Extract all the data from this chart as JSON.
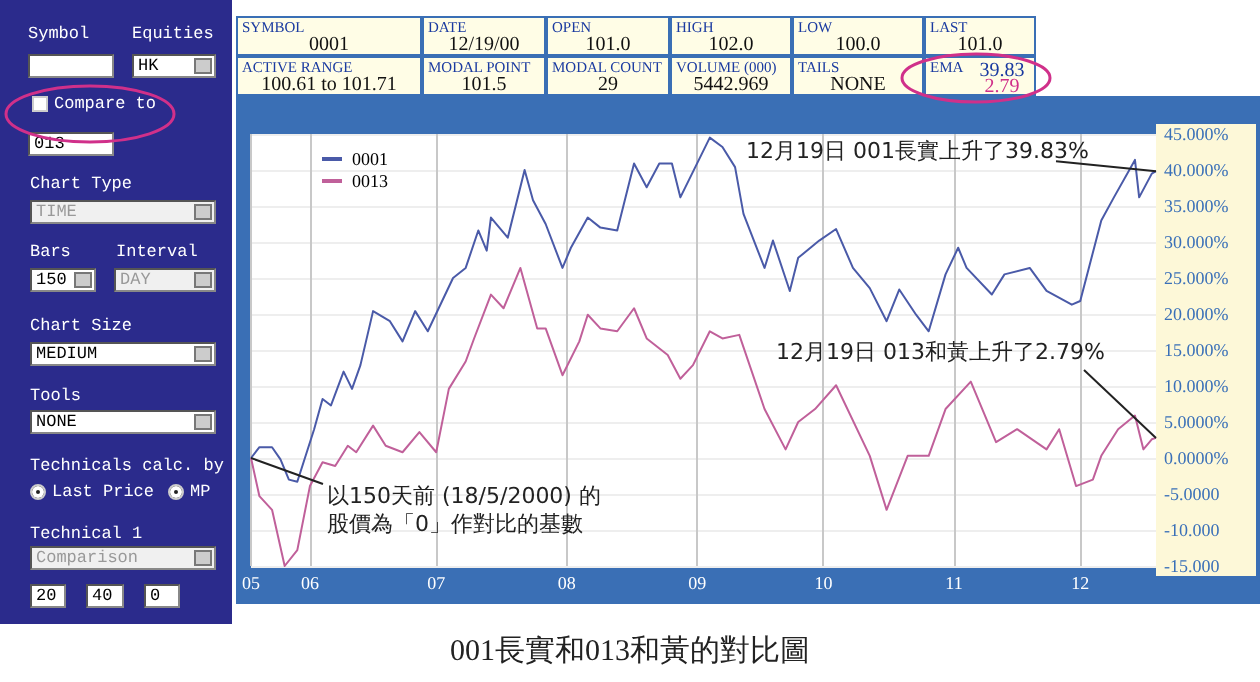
{
  "chart_data": [
    {
      "type": "other",
      "annotations": [
        "Symbol",
        "Equities",
        "HK",
        "Compare to",
        "013",
        "Chart Type",
        "TIME",
        "Bars",
        "Interval",
        "150",
        "DAY",
        "Chart Size",
        "MEDIUM",
        "Tools",
        "NONE",
        "Technicals calc. by",
        "Last Price",
        "MP",
        "Technical 1",
        "Comparison",
        "20",
        "40",
        "0"
      ]
    },
    {
      "type": "other",
      "annotations": [
        "SYMBOL",
        "0001",
        "DATE",
        "12/19/00",
        "OPEN",
        "101.0",
        "HIGH",
        "102.0",
        "LOW",
        "100.0",
        "LAST",
        "101.0",
        "ACTIVE RANGE",
        "100.61 to 101.71",
        "MODAL POINT",
        "101.5",
        "MODAL COUNT",
        "29",
        "VOLUME (000)",
        "5442.969",
        "TAILS",
        "NONE",
        "EMA",
        "39.83",
        "2.79"
      ]
    },
    {
      "type": "line",
      "title": "001長實和013和黃的對比圖",
      "marker": "none",
      "grid": true,
      "legend": "top left",
      "annotations": [
        {
          "text": "12月19日 001長實上升了39.83%",
          "x": "2000-12-19",
          "y": 39.83
        },
        {
          "text": "12月19日 013和黃上升了2.79%",
          "x": "2000-12-19",
          "y": 2.79
        },
        {
          "text": "以150天前 (18/5/2000) 的股價為「0」作對比的基數",
          "x": "2000-05-18",
          "y": 0
        }
      ],
      "xlim": [
        "2000-05-18",
        "2000-12-19"
      ],
      "xticks": [
        {
          "value": "2000-05-18",
          "label": "05"
        },
        {
          "value": "2000-06-01",
          "label": "06"
        },
        {
          "value": "2000-07-01",
          "label": "07"
        },
        {
          "value": "2000-08-01",
          "label": "08"
        },
        {
          "value": "2000-09-01",
          "label": "09"
        },
        {
          "value": "2000-10-01",
          "label": "10"
        },
        {
          "value": "2000-11-01",
          "label": "11"
        },
        {
          "value": "2000-12-01",
          "label": "12"
        }
      ],
      "ylim": [
        -15,
        45
      ],
      "yticks": [
        {
          "value": 45,
          "label": "45.000%"
        },
        {
          "value": 40,
          "label": "40.000%"
        },
        {
          "value": 35,
          "label": "35.000%"
        },
        {
          "value": 30,
          "label": "30.000%"
        },
        {
          "value": 25,
          "label": "25.000%"
        },
        {
          "value": 20,
          "label": "20.000%"
        },
        {
          "value": 15,
          "label": "15.000%"
        },
        {
          "value": 10,
          "label": "10.000%"
        },
        {
          "value": 5,
          "label": "5.0000%"
        },
        {
          "value": 0,
          "label": "0.0000%"
        },
        {
          "value": -5,
          "label": "-5.0000"
        },
        {
          "value": -10,
          "label": "-10.000"
        },
        {
          "value": -15,
          "label": "-15.000"
        }
      ],
      "series": [
        {
          "name": "0001",
          "color": "#4a5aa8",
          "x": [
            "2000-05-18",
            "2000-05-20",
            "2000-05-23",
            "2000-05-25",
            "2000-05-27",
            "2000-05-29",
            "2000-06-02",
            "2000-06-04",
            "2000-06-06",
            "2000-06-09",
            "2000-06-11",
            "2000-06-13",
            "2000-06-16",
            "2000-06-20",
            "2000-06-23",
            "2000-06-26",
            "2000-06-29",
            "2000-07-05",
            "2000-07-08",
            "2000-07-11",
            "2000-07-13",
            "2000-07-14",
            "2000-07-18",
            "2000-07-22",
            "2000-07-24",
            "2000-07-27",
            "2000-07-31",
            "2000-08-02",
            "2000-08-06",
            "2000-08-09",
            "2000-08-13",
            "2000-08-17",
            "2000-08-20",
            "2000-08-23",
            "2000-08-26",
            "2000-08-28",
            "2000-09-04",
            "2000-09-07",
            "2000-09-10",
            "2000-09-12",
            "2000-09-17",
            "2000-09-19",
            "2000-09-23",
            "2000-09-25",
            "2000-09-30",
            "2000-10-04",
            "2000-10-08",
            "2000-10-12",
            "2000-10-16",
            "2000-10-19",
            "2000-10-23",
            "2000-10-26",
            "2000-10-30",
            "2000-11-02",
            "2000-11-04",
            "2000-11-10",
            "2000-11-13",
            "2000-11-19",
            "2000-11-23",
            "2000-11-29",
            "2000-12-01",
            "2000-12-06",
            "2000-12-09",
            "2000-12-14",
            "2000-12-15",
            "2000-12-18",
            "2000-12-19"
          ],
          "values": [
            0,
            1.5,
            1.5,
            -0.2,
            -3.0,
            -3.3,
            4.0,
            8.2,
            7.3,
            12.0,
            9.6,
            12.9,
            20.4,
            19.0,
            16.2,
            20.4,
            17.6,
            25.0,
            26.4,
            31.6,
            28.8,
            33.4,
            30.6,
            40.0,
            35.8,
            32.5,
            26.4,
            29.2,
            33.4,
            32.0,
            31.6,
            40.9,
            37.6,
            40.9,
            40.9,
            36.2,
            44.5,
            43.2,
            40.4,
            33.9,
            26.4,
            30.2,
            23.2,
            27.8,
            30.2,
            31.8,
            26.4,
            23.6,
            19.0,
            23.4,
            19.9,
            17.6,
            25.5,
            29.2,
            26.4,
            22.7,
            25.5,
            26.4,
            23.2,
            21.3,
            21.8,
            33.0,
            36.2,
            41.4,
            36.2,
            39.5,
            39.83
          ]
        },
        {
          "name": "0013",
          "color": "#c0609a",
          "x": [
            "2000-05-18",
            "2000-05-20",
            "2000-05-23",
            "2000-05-26",
            "2000-05-29",
            "2000-06-01",
            "2000-06-04",
            "2000-06-07",
            "2000-06-10",
            "2000-06-12",
            "2000-06-16",
            "2000-06-19",
            "2000-06-23",
            "2000-06-27",
            "2000-07-01",
            "2000-07-04",
            "2000-07-08",
            "2000-07-10",
            "2000-07-14",
            "2000-07-17",
            "2000-07-21",
            "2000-07-25",
            "2000-07-27",
            "2000-07-31",
            "2000-08-04",
            "2000-08-06",
            "2000-08-09",
            "2000-08-13",
            "2000-08-17",
            "2000-08-20",
            "2000-08-25",
            "2000-08-28",
            "2000-08-31",
            "2000-09-04",
            "2000-09-07",
            "2000-09-11",
            "2000-09-17",
            "2000-09-22",
            "2000-09-25",
            "2000-09-29",
            "2000-10-04",
            "2000-10-12",
            "2000-10-16",
            "2000-10-21",
            "2000-10-26",
            "2000-10-30",
            "2000-11-05",
            "2000-11-11",
            "2000-11-16",
            "2000-11-23",
            "2000-11-26",
            "2000-11-30",
            "2000-12-04",
            "2000-12-06",
            "2000-12-10",
            "2000-12-14",
            "2000-12-16",
            "2000-12-18",
            "2000-12-19"
          ],
          "values": [
            0,
            -5.3,
            -7.2,
            -15.0,
            -12.8,
            -3.9,
            -0.6,
            -1.1,
            1.7,
            0.8,
            4.5,
            1.7,
            0.8,
            3.6,
            0.8,
            9.6,
            13.4,
            16.6,
            22.7,
            20.8,
            26.4,
            18.0,
            18.0,
            11.5,
            16.2,
            19.9,
            18.0,
            17.6,
            20.8,
            16.6,
            14.3,
            11.0,
            12.9,
            17.6,
            16.6,
            17.1,
            6.8,
            1.2,
            5.0,
            6.8,
            10.1,
            0.3,
            -7.2,
            0.3,
            0.3,
            6.8,
            10.6,
            2.2,
            4.0,
            1.2,
            4.0,
            -3.9,
            -3.0,
            0.3,
            4.0,
            5.9,
            1.2,
            2.6,
            2.79
          ]
        }
      ]
    }
  ]
}
